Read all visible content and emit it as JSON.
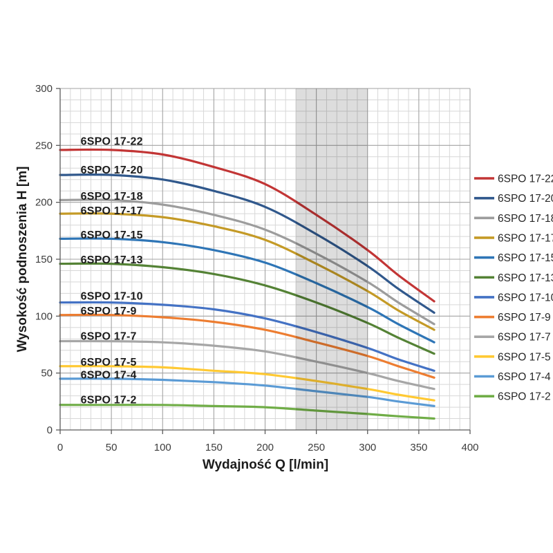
{
  "chart_data": {
    "type": "line",
    "title": "",
    "xlabel": "Wydajność Q [l/min]",
    "ylabel": "Wysokość podnoszenia H [m]",
    "xlim": [
      0,
      400
    ],
    "ylim": [
      0,
      300
    ],
    "x_ticks": [
      0,
      50,
      100,
      150,
      200,
      250,
      300,
      350,
      400
    ],
    "y_ticks": [
      0,
      50,
      100,
      150,
      200,
      250,
      300
    ],
    "grid": {
      "show": true,
      "minor_step_x": 10,
      "minor_step_y": 10,
      "major_step_x": 50,
      "major_step_y": 50,
      "minor_color": "#d7d7d7",
      "major_color": "#a3a3a3",
      "axis_color": "#5a5a5a"
    },
    "operating_band": {
      "x_start": 230,
      "x_end": 300,
      "overlay_color": "rgba(0,0,0,0.135)"
    },
    "legend_position": "right",
    "curve_label_q": 20,
    "x": [
      0,
      50,
      100,
      150,
      200,
      250,
      300,
      330,
      365
    ],
    "series": [
      {
        "name": "6SPO 17-22",
        "color": "#c23535",
        "label_h": 254,
        "values": [
          246,
          246,
          242,
          231,
          216,
          189,
          158,
          136,
          113
        ]
      },
      {
        "name": "6SPO 17-20",
        "color": "#30588c",
        "label_h": 229,
        "values": [
          224,
          224,
          220,
          210,
          196,
          172,
          144,
          124,
          103
        ]
      },
      {
        "name": "6SPO 17-18",
        "color": "#9c9c9c",
        "label_h": 206,
        "values": [
          202,
          202,
          198,
          189,
          176,
          155,
          130,
          112,
          93
        ]
      },
      {
        "name": "6SPO 17-17",
        "color": "#c49a26",
        "label_h": 193,
        "values": [
          190,
          190,
          187,
          179,
          167,
          146,
          122,
          105,
          88
        ]
      },
      {
        "name": "6SPO 17-15",
        "color": "#2e75b6",
        "label_h": 172,
        "values": [
          168,
          168,
          165,
          158,
          147,
          129,
          108,
          93,
          77
        ]
      },
      {
        "name": "6SPO 17-13",
        "color": "#548235",
        "label_h": 150,
        "values": [
          146,
          146,
          143,
          137,
          127,
          112,
          94,
          81,
          67
        ]
      },
      {
        "name": "6SPO 17-10",
        "color": "#4472c4",
        "label_h": 118,
        "values": [
          112,
          112,
          110,
          106,
          98,
          86,
          72,
          62,
          52
        ]
      },
      {
        "name": "6SPO 17-9",
        "color": "#ed7d31",
        "label_h": 105,
        "values": [
          101,
          101,
          99,
          95,
          88,
          77,
          65,
          56,
          46
        ]
      },
      {
        "name": "6SPO 17-7",
        "color": "#a6a6a6",
        "label_h": 83,
        "values": [
          78,
          78,
          77,
          74,
          69,
          60,
          50,
          43,
          36
        ]
      },
      {
        "name": "6SPO 17-5",
        "color": "#ffc933",
        "label_h": 60,
        "values": [
          56,
          56,
          55,
          52,
          49,
          43,
          36,
          31,
          26
        ]
      },
      {
        "name": "6SPO 17-4",
        "color": "#5b9bd5",
        "label_h": 49,
        "values": [
          45,
          45,
          44,
          42,
          39,
          34,
          29,
          25,
          21
        ]
      },
      {
        "name": "6SPO 17-2",
        "color": "#70ad47",
        "label_h": 27,
        "values": [
          22,
          22,
          22,
          21,
          20,
          17,
          14,
          12,
          10
        ]
      }
    ]
  }
}
